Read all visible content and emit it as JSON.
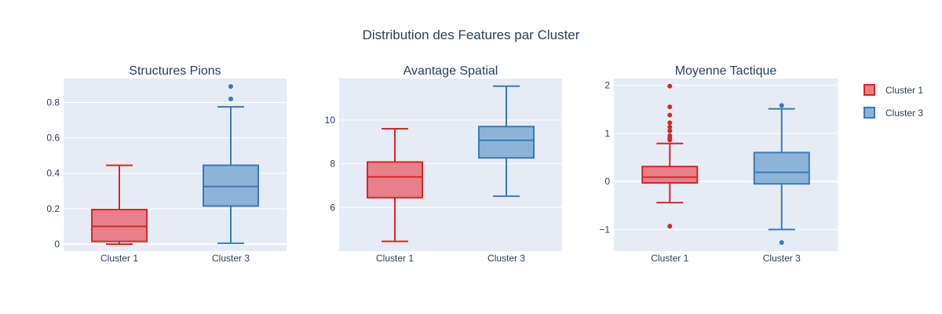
{
  "chart_data": {
    "type": "box",
    "title": "Distribution des Features par Cluster",
    "colors": {
      "Cluster 1": {
        "line": "#d62728",
        "fill": "#e8808a"
      },
      "Cluster 3": {
        "line": "#3a7ab8",
        "fill": "#8db3d8"
      }
    },
    "plot_bg": "#e5ecf6",
    "grid": true,
    "legend": {
      "placement": "right",
      "entries": [
        "Cluster 1",
        "Cluster 3"
      ]
    },
    "subplots": [
      {
        "title": "Structures Pions",
        "categories": [
          "Cluster 1",
          "Cluster 3"
        ],
        "ylim": [
          -0.04,
          0.935
        ],
        "yticks": [
          0,
          0.2,
          0.4,
          0.6,
          0.8
        ],
        "ytick_labels": [
          "0",
          "0.2",
          "0.4",
          "0.6",
          "0.8"
        ],
        "boxes": [
          {
            "name": "Cluster 1",
            "min": 0.0,
            "q1": 0.015,
            "median": 0.1,
            "q3": 0.195,
            "max": 0.445,
            "outliers": []
          },
          {
            "name": "Cluster 3",
            "min": 0.005,
            "q1": 0.215,
            "median": 0.325,
            "q3": 0.445,
            "max": 0.775,
            "outliers": [
              0.82,
              0.89
            ]
          }
        ]
      },
      {
        "title": "Avantage Spatial",
        "categories": [
          "Cluster 1",
          "Cluster 3"
        ],
        "ylim": [
          4.0,
          11.9
        ],
        "yticks": [
          6,
          8,
          10
        ],
        "ytick_labels": [
          "6",
          "8",
          "10"
        ],
        "boxes": [
          {
            "name": "Cluster 1",
            "min": 4.45,
            "q1": 6.45,
            "median": 7.4,
            "q3": 8.08,
            "max": 9.6,
            "outliers": []
          },
          {
            "name": "Cluster 3",
            "min": 6.52,
            "q1": 8.27,
            "median": 9.07,
            "q3": 9.7,
            "max": 11.55,
            "outliers": []
          }
        ]
      },
      {
        "title": "Moyenne Tactique",
        "categories": [
          "Cluster 1",
          "Cluster 3"
        ],
        "ylim": [
          -1.45,
          2.14
        ],
        "yticks": [
          -1,
          0,
          1,
          2
        ],
        "ytick_labels": [
          "−1",
          "0",
          "1",
          "2"
        ],
        "boxes": [
          {
            "name": "Cluster 1",
            "min": -0.44,
            "q1": -0.03,
            "median": 0.09,
            "q3": 0.31,
            "max": 0.79,
            "outliers": [
              -0.93,
              0.86,
              0.9,
              0.95,
              1.05,
              1.13,
              1.22,
              1.38,
              1.55,
              1.98
            ]
          },
          {
            "name": "Cluster 3",
            "min": -1.0,
            "q1": -0.05,
            "median": 0.19,
            "q3": 0.6,
            "max": 1.51,
            "outliers": [
              -1.27,
              1.58
            ]
          }
        ]
      }
    ]
  }
}
